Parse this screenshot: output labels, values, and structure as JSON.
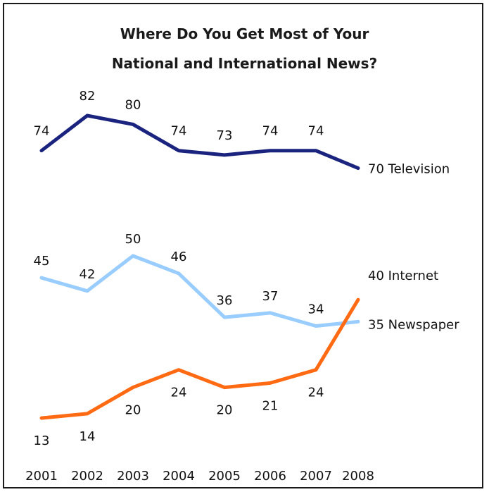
{
  "chart_data": {
    "type": "line",
    "title_line1": "Where Do You Get Most of Your",
    "title_line2": "National and International News?",
    "categories": [
      "2001",
      "2002",
      "2003",
      "2004",
      "2005",
      "2006",
      "2007",
      "2008"
    ],
    "ylim": [
      0,
      90
    ],
    "grid": false,
    "legend": "end-of-line labels",
    "series": [
      {
        "name": "Television",
        "color": "#1a237e",
        "values": [
          74,
          82,
          80,
          74,
          73,
          74,
          74,
          70
        ]
      },
      {
        "name": "Internet",
        "color": "#ff6a13",
        "values": [
          13,
          14,
          20,
          24,
          20,
          21,
          24,
          40
        ]
      },
      {
        "name": "Newspaper",
        "color": "#99ccff",
        "values": [
          45,
          42,
          50,
          46,
          36,
          37,
          34,
          35
        ]
      }
    ]
  }
}
